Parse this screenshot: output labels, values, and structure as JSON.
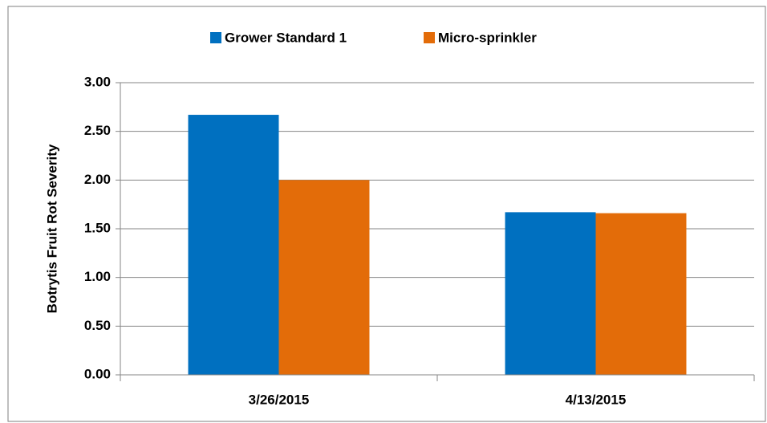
{
  "chart_data": {
    "type": "bar",
    "y_label": "Botrytis Fruit Rot Severity",
    "categories": [
      "3/26/2015",
      "4/13/2015"
    ],
    "series": [
      {
        "name": "Grower Standard 1",
        "color": "#0070c0",
        "values": [
          2.67,
          1.67
        ]
      },
      {
        "name": "Micro-sprinkler",
        "color": "#e36c09",
        "values": [
          2.0,
          1.66
        ]
      }
    ],
    "ylim": [
      0,
      3
    ],
    "yticks": [
      {
        "value": 0,
        "label": "0.00"
      },
      {
        "value": 0.5,
        "label": "0.50"
      },
      {
        "value": 1,
        "label": "1.00"
      },
      {
        "value": 1.5,
        "label": "1.50"
      },
      {
        "value": 2,
        "label": "2.00"
      },
      {
        "value": 2.5,
        "label": "2.50"
      },
      {
        "value": 3,
        "label": "3.00"
      }
    ],
    "grid": true,
    "legend": "top"
  }
}
